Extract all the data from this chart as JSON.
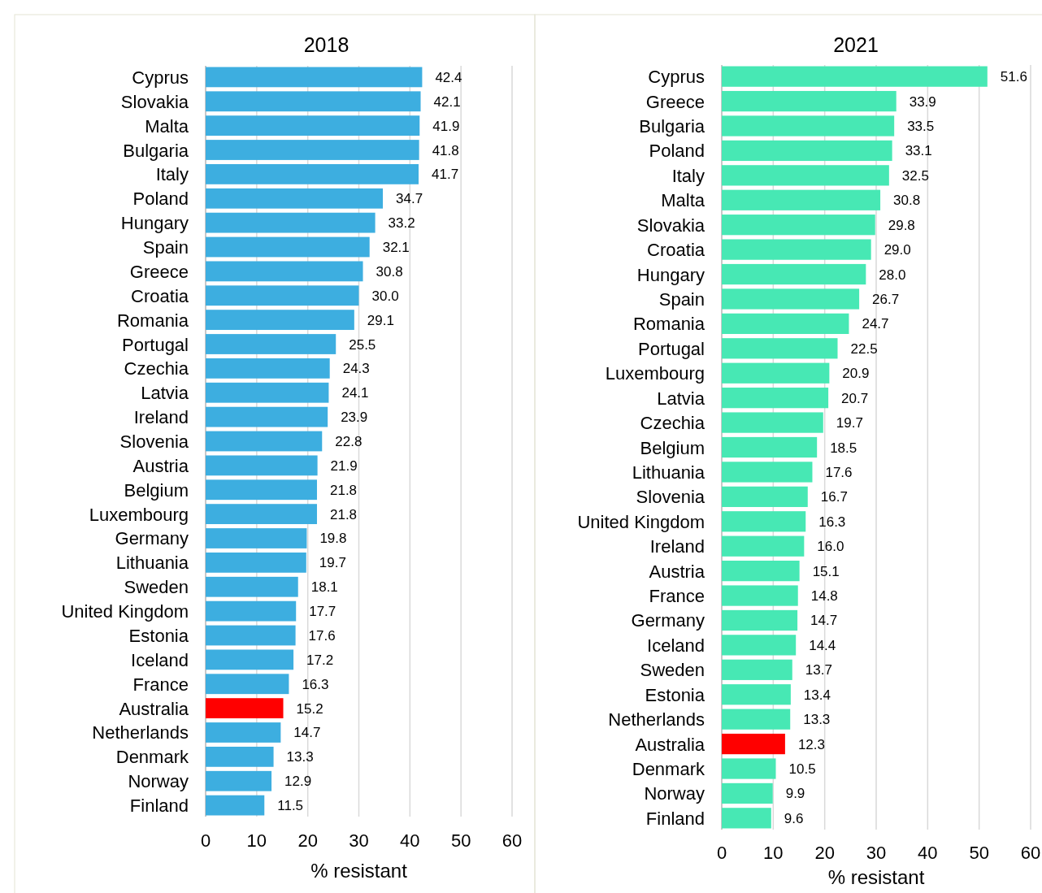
{
  "chart_data": [
    {
      "type": "bar",
      "orientation": "horizontal",
      "title": "2018",
      "xlabel": "% resistant",
      "xlim": [
        0,
        60
      ],
      "xticks": [
        0,
        10,
        20,
        30,
        40,
        50,
        60
      ],
      "grid": "x",
      "categories": [
        "Cyprus",
        "Slovakia",
        "Malta",
        "Bulgaria",
        "Italy",
        "Poland",
        "Hungary",
        "Spain",
        "Greece",
        "Croatia",
        "Romania",
        "Portugal",
        "Czechia",
        "Latvia",
        "Ireland",
        "Slovenia",
        "Austria",
        "Belgium",
        "Luxembourg",
        "Germany",
        "Lithuania",
        "Sweden",
        "United Kingdom",
        "Estonia",
        "Iceland",
        "France",
        "Australia",
        "Netherlands",
        "Denmark",
        "Norway",
        "Finland"
      ],
      "values": [
        42.4,
        42.1,
        41.9,
        41.8,
        41.7,
        34.7,
        33.2,
        32.1,
        30.8,
        30.0,
        29.1,
        25.5,
        24.3,
        24.1,
        23.9,
        22.8,
        21.9,
        21.8,
        21.8,
        19.8,
        19.7,
        18.1,
        17.7,
        17.6,
        17.2,
        16.3,
        15.2,
        14.7,
        13.3,
        12.9,
        11.5
      ],
      "value_labels": [
        "42.4",
        "42.1",
        "41.9",
        "41.8",
        "41.7",
        "34.7",
        "33.2",
        "32.1",
        "30.8",
        "30.0",
        "29.1",
        "25.5",
        "24.3",
        "24.1",
        "23.9",
        "22.8",
        "21.9",
        "21.8",
        "21.8",
        "19.8",
        "19.7",
        "18.1",
        "17.7",
        "17.6",
        "17.2",
        "16.3",
        "15.2",
        "14.7",
        "13.3",
        "12.9",
        "11.5"
      ],
      "colors": [
        "#3daee0",
        "#3daee0",
        "#3daee0",
        "#3daee0",
        "#3daee0",
        "#3daee0",
        "#3daee0",
        "#3daee0",
        "#3daee0",
        "#3daee0",
        "#3daee0",
        "#3daee0",
        "#3daee0",
        "#3daee0",
        "#3daee0",
        "#3daee0",
        "#3daee0",
        "#3daee0",
        "#3daee0",
        "#3daee0",
        "#3daee0",
        "#3daee0",
        "#3daee0",
        "#3daee0",
        "#3daee0",
        "#3daee0",
        "#ff0000",
        "#3daee0",
        "#3daee0",
        "#3daee0",
        "#3daee0"
      ]
    },
    {
      "type": "bar",
      "orientation": "horizontal",
      "title": "2021",
      "xlabel": "% resistant",
      "xlim": [
        0,
        60
      ],
      "xticks": [
        0,
        10,
        20,
        30,
        40,
        50,
        60
      ],
      "grid": "x",
      "categories": [
        "Cyprus",
        "Greece",
        "Bulgaria",
        "Poland",
        "Italy",
        "Malta",
        "Slovakia",
        "Croatia",
        "Hungary",
        "Spain",
        "Romania",
        "Portugal",
        "Luxembourg",
        "Latvia",
        "Czechia",
        "Belgium",
        "Lithuania",
        "Slovenia",
        "United Kingdom",
        "Ireland",
        "Austria",
        "France",
        "Germany",
        "Iceland",
        "Sweden",
        "Estonia",
        "Netherlands",
        "Australia",
        "Denmark",
        "Norway",
        "Finland"
      ],
      "values": [
        51.6,
        33.9,
        33.5,
        33.1,
        32.5,
        30.8,
        29.8,
        29.0,
        28.0,
        26.7,
        24.7,
        22.5,
        20.9,
        20.7,
        19.7,
        18.5,
        17.6,
        16.7,
        16.3,
        16.0,
        15.1,
        14.8,
        14.7,
        14.4,
        13.7,
        13.4,
        13.3,
        12.3,
        10.5,
        9.9,
        9.6
      ],
      "value_labels": [
        "51.6",
        "33.9",
        "33.5",
        "33.1",
        "32.5",
        "30.8",
        "29.8",
        "29.0",
        "28.0",
        "26.7",
        "24.7",
        "22.5",
        "20.9",
        "20.7",
        "19.7",
        "18.5",
        "17.6",
        "16.7",
        "16.3",
        "16.0",
        "15.1",
        "14.8",
        "14.7",
        "14.4",
        "13.7",
        "13.4",
        "13.3",
        "12.3",
        "10.5",
        "9.9",
        "9.6"
      ],
      "colors": [
        "#47e8b4",
        "#47e8b4",
        "#47e8b4",
        "#47e8b4",
        "#47e8b4",
        "#47e8b4",
        "#47e8b4",
        "#47e8b4",
        "#47e8b4",
        "#47e8b4",
        "#47e8b4",
        "#47e8b4",
        "#47e8b4",
        "#47e8b4",
        "#47e8b4",
        "#47e8b4",
        "#47e8b4",
        "#47e8b4",
        "#47e8b4",
        "#47e8b4",
        "#47e8b4",
        "#47e8b4",
        "#47e8b4",
        "#47e8b4",
        "#47e8b4",
        "#47e8b4",
        "#47e8b4",
        "#ff0000",
        "#47e8b4",
        "#47e8b4",
        "#47e8b4"
      ]
    }
  ]
}
